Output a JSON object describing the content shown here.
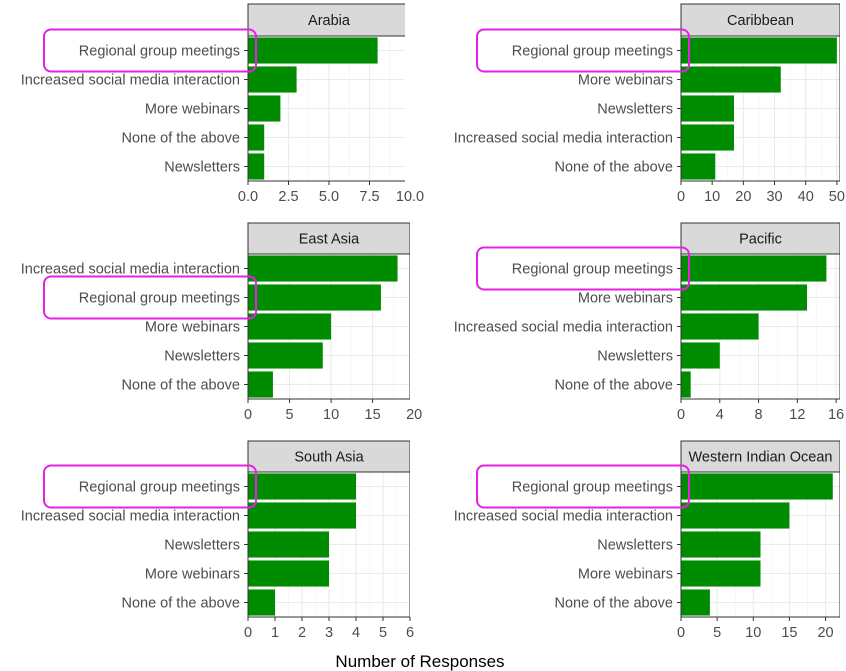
{
  "chart_data": {
    "type": "bar",
    "orientation": "horizontal",
    "xlabel": "Number of Responses",
    "ylabel": "",
    "bar_color": "#008c00",
    "highlight_color": "#e81ee8",
    "highlighted_category": "Regional group meetings",
    "grid": true,
    "panels": [
      {
        "title": "Arabia",
        "categories": [
          "Regional group meetings",
          "Increased social media interaction",
          "More webinars",
          "None of the above",
          "Newsletters"
        ],
        "values": [
          8,
          3,
          2,
          1,
          1
        ],
        "xlim": [
          0,
          10
        ],
        "ticks": [
          0,
          2.5,
          5,
          7.5,
          10
        ],
        "tick_labels": [
          "0.0",
          "2.5",
          "5.0",
          "7.5",
          "10.0"
        ]
      },
      {
        "title": "Caribbean",
        "categories": [
          "Regional group meetings",
          "More webinars",
          "Newsletters",
          "Increased social media interaction",
          "None of the above"
        ],
        "values": [
          50,
          32,
          17,
          17,
          11
        ],
        "xlim": [
          0,
          51
        ],
        "ticks": [
          0,
          10,
          20,
          30,
          40,
          50
        ],
        "tick_labels": [
          "0",
          "10",
          "20",
          "30",
          "40",
          "50"
        ]
      },
      {
        "title": "East Asia",
        "categories": [
          "Increased social media interaction",
          "Regional group meetings",
          "More webinars",
          "Newsletters",
          "None of the above"
        ],
        "values": [
          18,
          16,
          10,
          9,
          3
        ],
        "xlim": [
          0,
          19.5
        ],
        "ticks": [
          0,
          5,
          10,
          15,
          20
        ],
        "tick_labels": [
          "0",
          "5",
          "10",
          "15",
          "20"
        ]
      },
      {
        "title": "Pacific",
        "categories": [
          "Regional group meetings",
          "More webinars",
          "Increased social media interaction",
          "Newsletters",
          "None of the above"
        ],
        "values": [
          15,
          13,
          8,
          4,
          1
        ],
        "xlim": [
          0,
          16.4
        ],
        "ticks": [
          0,
          4,
          8,
          12,
          16
        ],
        "tick_labels": [
          "0",
          "4",
          "8",
          "12",
          "16"
        ]
      },
      {
        "title": "South Asia",
        "categories": [
          "Regional group meetings",
          "Increased social media interaction",
          "Newsletters",
          "More webinars",
          "None of the above"
        ],
        "values": [
          4,
          4,
          3,
          3,
          1
        ],
        "xlim": [
          0,
          6
        ],
        "ticks": [
          0,
          1,
          2,
          3,
          4,
          5,
          6
        ],
        "tick_labels": [
          "0",
          "1",
          "2",
          "3",
          "4",
          "5",
          "6"
        ]
      },
      {
        "title": "Western Indian Ocean",
        "categories": [
          "Regional group meetings",
          "Increased social media interaction",
          "Newsletters",
          "More webinars",
          "None of the above"
        ],
        "values": [
          21,
          15,
          11,
          11,
          4
        ],
        "xlim": [
          0,
          22
        ],
        "ticks": [
          0,
          5,
          10,
          15,
          20
        ],
        "tick_labels": [
          "0",
          "5",
          "10",
          "15",
          "20"
        ]
      }
    ]
  }
}
